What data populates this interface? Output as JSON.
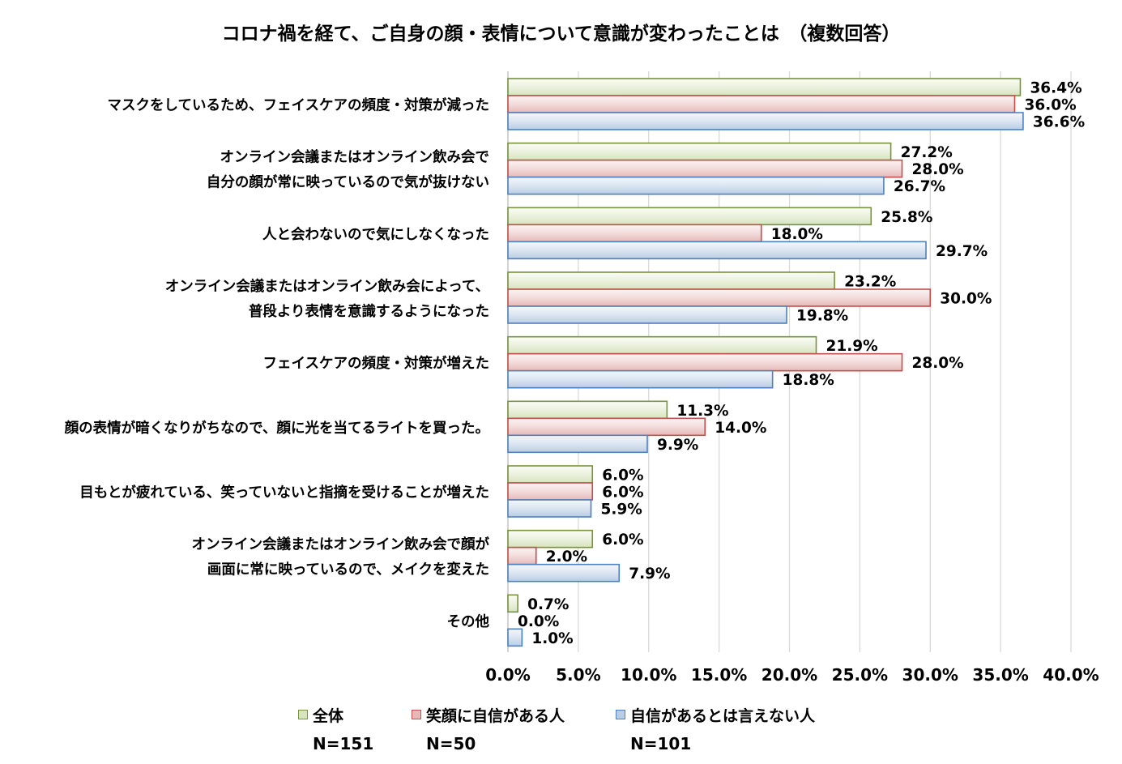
{
  "chart_data": {
    "type": "bar",
    "orientation": "horizontal",
    "title": "コロナ禍を経て、ご自身の顔・表情について意識が変わったことは　（複数回答）",
    "categories": [
      [
        "マスクをしているため、フェイスケアの頻度・対策が減った"
      ],
      [
        "オンライン会議またはオンライン飲み会で",
        "自分の顔が常に映っているので気が抜けない"
      ],
      [
        "人と会わないので気にしなくなった"
      ],
      [
        "オンライン会議またはオンライン飲み会によって、",
        "普段より表情を意識するようになった"
      ],
      [
        "フェイスケアの頻度・対策が増えた"
      ],
      [
        "顔の表情が暗くなりがちなので、顔に光を当てるライトを買った。"
      ],
      [
        "目もとが疲れている、笑っていないと指摘を受けることが増えた"
      ],
      [
        "オンライン会議またはオンライン飲み会で顔が",
        "画面に常に映っているので、メイクを変えた"
      ],
      [
        "その他"
      ]
    ],
    "series": [
      {
        "name": "全体",
        "values": [
          36.4,
          27.2,
          25.8,
          23.2,
          21.9,
          11.3,
          6.0,
          6.0,
          0.7
        ],
        "labels": [
          "36.4%",
          "27.2%",
          "25.8%",
          "23.2%",
          "21.9%",
          "11.3%",
          "6.0%",
          "6.0%",
          "0.7%"
        ],
        "fill": "#ebf1de",
        "stroke": "#77933c",
        "n": "N=151"
      },
      {
        "name": "笑顔に自信がある人",
        "values": [
          36.0,
          28.0,
          18.0,
          30.0,
          28.0,
          14.0,
          6.0,
          2.0,
          0.0
        ],
        "labels": [
          "36.0%",
          "28.0%",
          "18.0%",
          "30.0%",
          "28.0%",
          "14.0%",
          "6.0%",
          "2.0%",
          "0.0%"
        ],
        "fill": "#f2dcdb",
        "stroke": "#c0504d",
        "n": "N=50"
      },
      {
        "name": "自信があるとは言えない人",
        "values": [
          36.6,
          26.7,
          29.7,
          19.8,
          18.8,
          9.9,
          5.9,
          7.9,
          1.0
        ],
        "labels": [
          "36.6%",
          "26.7%",
          "29.7%",
          "19.8%",
          "18.8%",
          "9.9%",
          "5.9%",
          "7.9%",
          "1.0%"
        ],
        "fill": "#dbe5f1",
        "stroke": "#4f81bd",
        "n": "N=101"
      }
    ],
    "xlim": [
      0,
      40
    ],
    "xticks": [
      "0.0%",
      "5.0%",
      "10.0%",
      "15.0%",
      "20.0%",
      "25.0%",
      "30.0%",
      "35.0%",
      "40.0%"
    ],
    "grid": true,
    "legend": "bottom"
  }
}
